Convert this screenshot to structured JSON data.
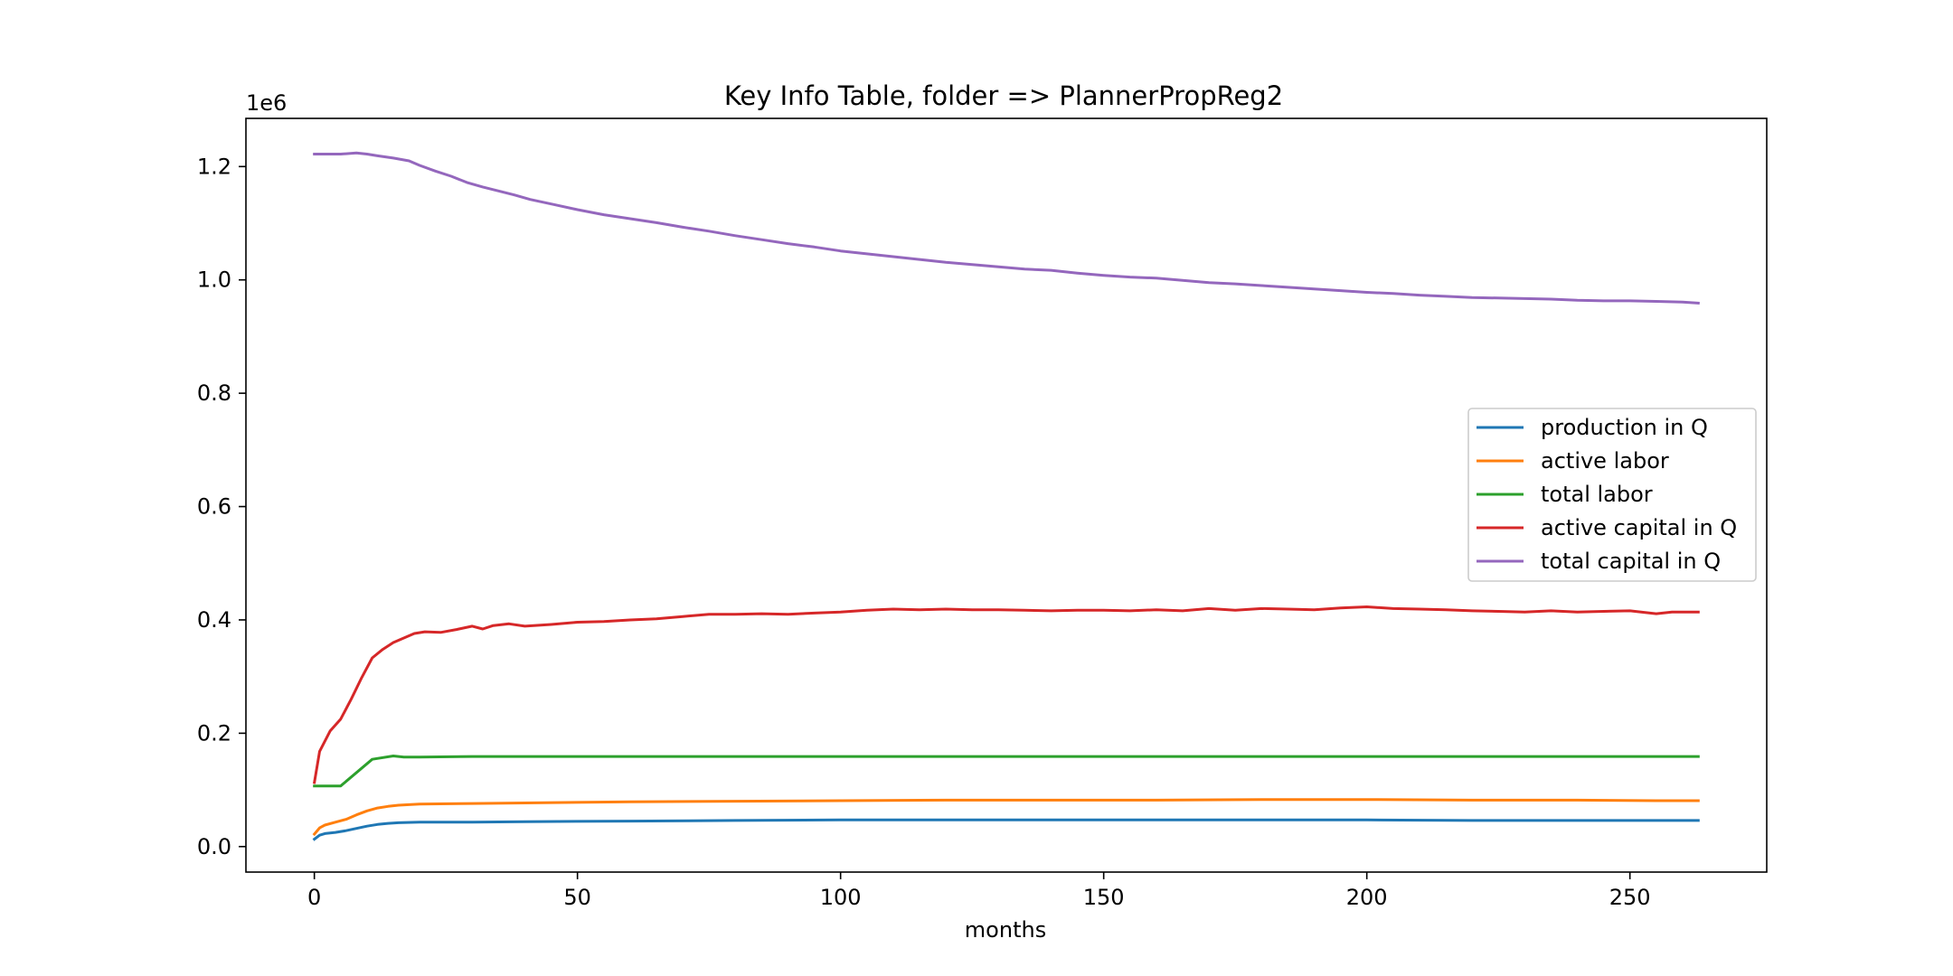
{
  "chart_data": {
    "type": "line",
    "title": "Key Info Table, folder => PlannerPropReg2",
    "xlabel": "months",
    "ylabel": "",
    "y_offset_label": "1e6",
    "xlim": [
      -13,
      276
    ],
    "ylim": [
      -0.045,
      1.285
    ],
    "xticks": [
      0,
      50,
      100,
      150,
      200,
      250
    ],
    "xtick_labels": [
      "0",
      "50",
      "100",
      "150",
      "200",
      "250"
    ],
    "yticks": [
      0.0,
      0.2,
      0.4,
      0.6,
      0.8,
      1.0,
      1.2
    ],
    "ytick_labels": [
      "0.0",
      "0.2",
      "0.4",
      "0.6",
      "0.8",
      "1.0",
      "1.2"
    ],
    "grid": false,
    "legend_position": "center-right",
    "series": [
      {
        "name": "production in Q",
        "color": "#1f77b4",
        "points": [
          [
            0,
            0.013
          ],
          [
            1,
            0.02
          ],
          [
            2,
            0.023
          ],
          [
            4,
            0.025
          ],
          [
            6,
            0.028
          ],
          [
            8,
            0.032
          ],
          [
            10,
            0.036
          ],
          [
            12,
            0.039
          ],
          [
            14,
            0.041
          ],
          [
            16,
            0.042
          ],
          [
            20,
            0.043
          ],
          [
            30,
            0.043
          ],
          [
            40,
            0.044
          ],
          [
            60,
            0.045
          ],
          [
            80,
            0.046
          ],
          [
            100,
            0.047
          ],
          [
            120,
            0.047
          ],
          [
            140,
            0.047
          ],
          [
            160,
            0.047
          ],
          [
            180,
            0.047
          ],
          [
            200,
            0.047
          ],
          [
            220,
            0.046
          ],
          [
            240,
            0.046
          ],
          [
            255,
            0.046
          ],
          [
            263,
            0.046
          ]
        ]
      },
      {
        "name": "active labor",
        "color": "#ff7f0e",
        "points": [
          [
            0,
            0.022
          ],
          [
            1,
            0.033
          ],
          [
            2,
            0.038
          ],
          [
            4,
            0.043
          ],
          [
            6,
            0.048
          ],
          [
            8,
            0.056
          ],
          [
            10,
            0.063
          ],
          [
            12,
            0.068
          ],
          [
            14,
            0.071
          ],
          [
            16,
            0.073
          ],
          [
            20,
            0.075
          ],
          [
            30,
            0.076
          ],
          [
            40,
            0.077
          ],
          [
            60,
            0.079
          ],
          [
            80,
            0.08
          ],
          [
            100,
            0.081
          ],
          [
            120,
            0.082
          ],
          [
            140,
            0.082
          ],
          [
            160,
            0.082
          ],
          [
            180,
            0.083
          ],
          [
            200,
            0.083
          ],
          [
            220,
            0.082
          ],
          [
            240,
            0.082
          ],
          [
            255,
            0.081
          ],
          [
            263,
            0.081
          ]
        ]
      },
      {
        "name": "total labor",
        "color": "#2ca02c",
        "points": [
          [
            0,
            0.107
          ],
          [
            5,
            0.107
          ],
          [
            11,
            0.154
          ],
          [
            15,
            0.16
          ],
          [
            17,
            0.158
          ],
          [
            20,
            0.158
          ],
          [
            30,
            0.159
          ],
          [
            50,
            0.159
          ],
          [
            100,
            0.159
          ],
          [
            150,
            0.159
          ],
          [
            200,
            0.159
          ],
          [
            250,
            0.159
          ],
          [
            263,
            0.159
          ]
        ]
      },
      {
        "name": "active capital in Q",
        "color": "#d62728",
        "points": [
          [
            0,
            0.113
          ],
          [
            1,
            0.168
          ],
          [
            3,
            0.204
          ],
          [
            5,
            0.225
          ],
          [
            7,
            0.26
          ],
          [
            9,
            0.298
          ],
          [
            11,
            0.333
          ],
          [
            13,
            0.348
          ],
          [
            15,
            0.36
          ],
          [
            17,
            0.368
          ],
          [
            19,
            0.376
          ],
          [
            21,
            0.379
          ],
          [
            24,
            0.378
          ],
          [
            27,
            0.383
          ],
          [
            30,
            0.389
          ],
          [
            32,
            0.384
          ],
          [
            34,
            0.39
          ],
          [
            37,
            0.393
          ],
          [
            40,
            0.389
          ],
          [
            45,
            0.392
          ],
          [
            50,
            0.396
          ],
          [
            55,
            0.397
          ],
          [
            60,
            0.4
          ],
          [
            65,
            0.402
          ],
          [
            70,
            0.406
          ],
          [
            75,
            0.41
          ],
          [
            80,
            0.41
          ],
          [
            85,
            0.411
          ],
          [
            90,
            0.41
          ],
          [
            95,
            0.412
          ],
          [
            100,
            0.414
          ],
          [
            105,
            0.417
          ],
          [
            110,
            0.419
          ],
          [
            115,
            0.418
          ],
          [
            120,
            0.419
          ],
          [
            125,
            0.418
          ],
          [
            130,
            0.418
          ],
          [
            135,
            0.417
          ],
          [
            140,
            0.416
          ],
          [
            145,
            0.417
          ],
          [
            150,
            0.417
          ],
          [
            155,
            0.416
          ],
          [
            160,
            0.418
          ],
          [
            165,
            0.416
          ],
          [
            170,
            0.42
          ],
          [
            175,
            0.417
          ],
          [
            180,
            0.42
          ],
          [
            185,
            0.419
          ],
          [
            190,
            0.418
          ],
          [
            195,
            0.421
          ],
          [
            200,
            0.423
          ],
          [
            205,
            0.42
          ],
          [
            210,
            0.419
          ],
          [
            215,
            0.418
          ],
          [
            220,
            0.416
          ],
          [
            225,
            0.415
          ],
          [
            230,
            0.414
          ],
          [
            235,
            0.416
          ],
          [
            240,
            0.414
          ],
          [
            245,
            0.415
          ],
          [
            250,
            0.416
          ],
          [
            255,
            0.411
          ],
          [
            258,
            0.414
          ],
          [
            263,
            0.414
          ]
        ]
      },
      {
        "name": "total capital in Q",
        "color": "#9467bd",
        "points": [
          [
            0,
            1.222
          ],
          [
            5,
            1.222
          ],
          [
            8,
            1.224
          ],
          [
            10,
            1.222
          ],
          [
            12,
            1.219
          ],
          [
            15,
            1.215
          ],
          [
            18,
            1.21
          ],
          [
            20,
            1.202
          ],
          [
            23,
            1.192
          ],
          [
            26,
            1.183
          ],
          [
            29,
            1.172
          ],
          [
            32,
            1.164
          ],
          [
            35,
            1.157
          ],
          [
            38,
            1.15
          ],
          [
            41,
            1.142
          ],
          [
            45,
            1.134
          ],
          [
            50,
            1.124
          ],
          [
            55,
            1.115
          ],
          [
            60,
            1.108
          ],
          [
            65,
            1.101
          ],
          [
            70,
            1.093
          ],
          [
            75,
            1.086
          ],
          [
            80,
            1.078
          ],
          [
            85,
            1.071
          ],
          [
            90,
            1.064
          ],
          [
            95,
            1.058
          ],
          [
            100,
            1.051
          ],
          [
            105,
            1.046
          ],
          [
            110,
            1.041
          ],
          [
            115,
            1.036
          ],
          [
            120,
            1.031
          ],
          [
            125,
            1.027
          ],
          [
            130,
            1.023
          ],
          [
            135,
            1.019
          ],
          [
            140,
            1.017
          ],
          [
            145,
            1.012
          ],
          [
            150,
            1.008
          ],
          [
            155,
            1.005
          ],
          [
            160,
            1.003
          ],
          [
            165,
            0.999
          ],
          [
            170,
            0.995
          ],
          [
            175,
            0.993
          ],
          [
            180,
            0.99
          ],
          [
            185,
            0.987
          ],
          [
            190,
            0.984
          ],
          [
            195,
            0.981
          ],
          [
            200,
            0.978
          ],
          [
            205,
            0.976
          ],
          [
            210,
            0.973
          ],
          [
            215,
            0.971
          ],
          [
            220,
            0.969
          ],
          [
            225,
            0.968
          ],
          [
            230,
            0.967
          ],
          [
            235,
            0.966
          ],
          [
            240,
            0.964
          ],
          [
            245,
            0.963
          ],
          [
            250,
            0.963
          ],
          [
            255,
            0.962
          ],
          [
            260,
            0.961
          ],
          [
            263,
            0.959
          ]
        ]
      }
    ]
  }
}
